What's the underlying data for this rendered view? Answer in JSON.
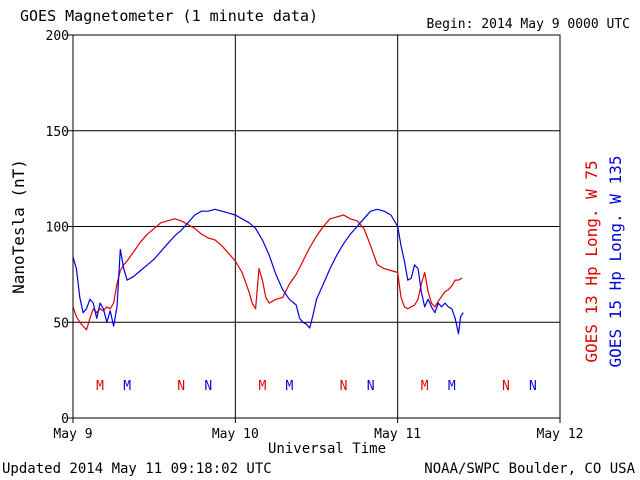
{
  "header": {
    "title": "GOES Magnetometer (1 minute data)",
    "begin": "Begin:  2014 May 9 0000 UTC"
  },
  "footer": {
    "updated": "Updated 2014 May 11 09:18:02 UTC",
    "credit": "NOAA/SWPC Boulder, CO USA"
  },
  "chart_data": {
    "type": "line",
    "xlabel": "Universal Time",
    "ylabel": "NanoTesla (nT)",
    "ylim": [
      0,
      200
    ],
    "xlim_hours": [
      0,
      72
    ],
    "x_ticks": [
      {
        "hour": 0,
        "label": "May 9"
      },
      {
        "hour": 24,
        "label": "May 10"
      },
      {
        "hour": 48,
        "label": "May 11"
      },
      {
        "hour": 72,
        "label": "May 12"
      }
    ],
    "y_ticks": [
      {
        "value": 0,
        "label": "0"
      },
      {
        "value": 50,
        "label": "50"
      },
      {
        "value": 100,
        "label": "100"
      },
      {
        "value": 150,
        "label": "150"
      },
      {
        "value": 200,
        "label": "200"
      }
    ],
    "grid": true,
    "series": [
      {
        "name": "GOES 13 Hp  Long. W 75",
        "color": "#e00000",
        "points": [
          [
            0,
            58
          ],
          [
            0.5,
            53
          ],
          [
            1,
            50
          ],
          [
            1.5,
            48
          ],
          [
            2,
            46
          ],
          [
            2.5,
            52
          ],
          [
            3,
            57
          ],
          [
            3.5,
            55
          ],
          [
            4,
            57
          ],
          [
            4.5,
            56
          ],
          [
            5,
            58
          ],
          [
            5.5,
            57
          ],
          [
            6,
            60
          ],
          [
            6.5,
            70
          ],
          [
            7,
            77
          ],
          [
            7.5,
            80
          ],
          [
            8,
            82
          ],
          [
            9,
            87
          ],
          [
            10,
            92
          ],
          [
            11,
            96
          ],
          [
            12,
            99
          ],
          [
            13,
            102
          ],
          [
            14,
            103
          ],
          [
            15,
            104
          ],
          [
            16,
            103
          ],
          [
            17,
            101
          ],
          [
            18,
            99
          ],
          [
            19,
            96
          ],
          [
            20,
            94
          ],
          [
            21,
            93
          ],
          [
            22,
            90
          ],
          [
            23,
            86
          ],
          [
            24,
            82
          ],
          [
            25,
            76
          ],
          [
            26,
            66
          ],
          [
            26.5,
            60
          ],
          [
            27,
            57
          ],
          [
            27.5,
            78
          ],
          [
            28,
            72
          ],
          [
            28.5,
            63
          ],
          [
            29,
            60
          ],
          [
            30,
            62
          ],
          [
            31,
            63
          ],
          [
            32,
            70
          ],
          [
            33,
            75
          ],
          [
            34,
            82
          ],
          [
            35,
            89
          ],
          [
            36,
            95
          ],
          [
            37,
            100
          ],
          [
            38,
            104
          ],
          [
            39,
            105
          ],
          [
            40,
            106
          ],
          [
            41,
            104
          ],
          [
            42,
            103
          ],
          [
            43,
            99
          ],
          [
            44,
            90
          ],
          [
            45,
            80
          ],
          [
            46,
            78
          ],
          [
            47,
            77
          ],
          [
            48,
            76
          ],
          [
            48.5,
            63
          ],
          [
            49,
            58
          ],
          [
            49.5,
            57
          ],
          [
            50,
            58
          ],
          [
            50.5,
            59
          ],
          [
            51,
            62
          ],
          [
            51.5,
            70
          ],
          [
            52,
            76
          ],
          [
            52.5,
            66
          ],
          [
            53,
            60
          ],
          [
            53.5,
            58
          ],
          [
            54,
            61
          ],
          [
            55,
            66
          ],
          [
            55.5,
            67
          ],
          [
            56,
            69
          ],
          [
            56.5,
            72
          ],
          [
            57,
            72
          ],
          [
            57.5,
            73
          ]
        ]
      },
      {
        "name": "GOES 15 Hp  Long. W 135",
        "color": "#0000e0",
        "points": [
          [
            0,
            84
          ],
          [
            0.5,
            78
          ],
          [
            1,
            63
          ],
          [
            1.5,
            55
          ],
          [
            2,
            57
          ],
          [
            2.5,
            62
          ],
          [
            3,
            60
          ],
          [
            3.5,
            52
          ],
          [
            4,
            60
          ],
          [
            4.5,
            57
          ],
          [
            5,
            50
          ],
          [
            5.5,
            56
          ],
          [
            6,
            48
          ],
          [
            6.5,
            58
          ],
          [
            7,
            88
          ],
          [
            7.5,
            78
          ],
          [
            8,
            72
          ],
          [
            9,
            74
          ],
          [
            10,
            77
          ],
          [
            11,
            80
          ],
          [
            12,
            83
          ],
          [
            13,
            87
          ],
          [
            14,
            91
          ],
          [
            15,
            95
          ],
          [
            16,
            98
          ],
          [
            17,
            102
          ],
          [
            18,
            106
          ],
          [
            19,
            108
          ],
          [
            20,
            108
          ],
          [
            21,
            109
          ],
          [
            22,
            108
          ],
          [
            23,
            107
          ],
          [
            24,
            106
          ],
          [
            25,
            104
          ],
          [
            26,
            102
          ],
          [
            27,
            99
          ],
          [
            28,
            93
          ],
          [
            29,
            85
          ],
          [
            30,
            75
          ],
          [
            31,
            67
          ],
          [
            32,
            62
          ],
          [
            33,
            59
          ],
          [
            33.5,
            52
          ],
          [
            34,
            50
          ],
          [
            34.5,
            49
          ],
          [
            35,
            47
          ],
          [
            35.5,
            54
          ],
          [
            36,
            62
          ],
          [
            37,
            70
          ],
          [
            38,
            78
          ],
          [
            39,
            85
          ],
          [
            40,
            91
          ],
          [
            41,
            96
          ],
          [
            42,
            100
          ],
          [
            43,
            104
          ],
          [
            44,
            108
          ],
          [
            45,
            109
          ],
          [
            46,
            108
          ],
          [
            47,
            106
          ],
          [
            48,
            100
          ],
          [
            48.5,
            90
          ],
          [
            49,
            82
          ],
          [
            49.5,
            72
          ],
          [
            50,
            73
          ],
          [
            50.5,
            80
          ],
          [
            51,
            78
          ],
          [
            51.5,
            66
          ],
          [
            52,
            58
          ],
          [
            52.5,
            62
          ],
          [
            53,
            58
          ],
          [
            53.5,
            55
          ],
          [
            54,
            60
          ],
          [
            54.5,
            58
          ],
          [
            55,
            60
          ],
          [
            55.5,
            58
          ],
          [
            56,
            57
          ],
          [
            56.5,
            52
          ],
          [
            57,
            44
          ],
          [
            57.3,
            53
          ],
          [
            57.7,
            55
          ]
        ]
      }
    ],
    "markers": [
      {
        "label": "M",
        "hour": 4,
        "series": 0
      },
      {
        "label": "M",
        "hour": 8,
        "series": 1
      },
      {
        "label": "N",
        "hour": 16,
        "series": 0
      },
      {
        "label": "N",
        "hour": 20,
        "series": 1
      },
      {
        "label": "M",
        "hour": 28,
        "series": 0
      },
      {
        "label": "M",
        "hour": 32,
        "series": 1
      },
      {
        "label": "N",
        "hour": 40,
        "series": 0
      },
      {
        "label": "N",
        "hour": 44,
        "series": 1
      },
      {
        "label": "M",
        "hour": 52,
        "series": 0
      },
      {
        "label": "M",
        "hour": 56,
        "series": 1
      },
      {
        "label": "N",
        "hour": 64,
        "series": 0
      },
      {
        "label": "N",
        "hour": 68,
        "series": 1
      }
    ]
  }
}
